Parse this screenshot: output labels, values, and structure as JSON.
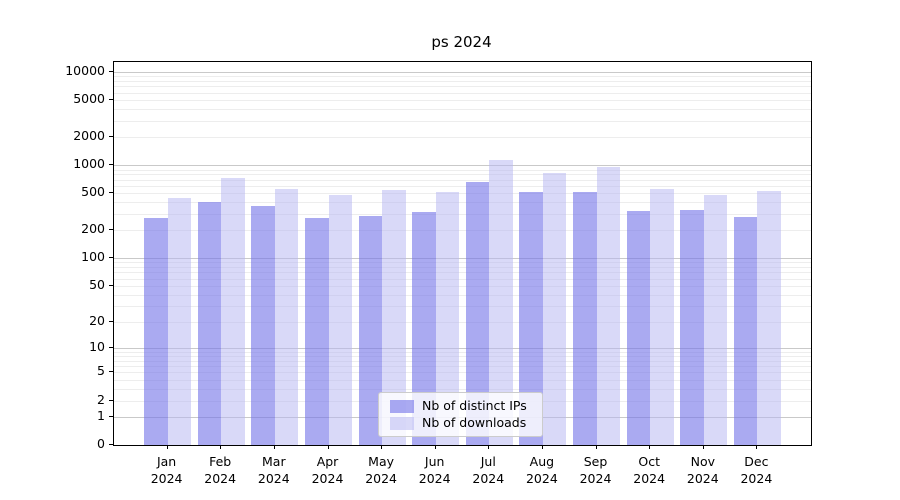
{
  "title": "ps 2024",
  "legend": {
    "items": [
      "Nb of distinct IPs",
      "Nb of downloads"
    ]
  },
  "colors": {
    "distinct_ips_fill": "rgba(118,118,232,0.62)",
    "downloads_fill": "rgba(183,183,242,0.52)",
    "distinct_ips_hex": "#a6a6f1",
    "downloads_hex": "#dadaf8",
    "grid_minor": "#ededed",
    "grid_major": "#c9c9c9",
    "axis": "#000000"
  },
  "chart_data": {
    "type": "bar",
    "title": "ps 2024",
    "categories": [
      "Jan 2024",
      "Feb 2024",
      "Mar 2024",
      "Apr 2024",
      "May 2024",
      "Jun 2024",
      "Jul 2024",
      "Aug 2024",
      "Sep 2024",
      "Oct 2024",
      "Nov 2024",
      "Dec 2024"
    ],
    "series": [
      {
        "name": "Nb of distinct IPs",
        "color": "#a6a6f1",
        "values": [
          270,
          400,
          365,
          270,
          285,
          315,
          655,
          510,
          520,
          320,
          330,
          275
        ]
      },
      {
        "name": "Nb of downloads",
        "color": "#dadaf8",
        "values": [
          445,
          735,
          560,
          475,
          545,
          510,
          1150,
          825,
          950,
          550,
          483,
          527
        ]
      }
    ],
    "yscale": "log1p",
    "y_ticks": [
      0,
      1,
      2,
      5,
      10,
      20,
      50,
      100,
      200,
      500,
      1000,
      2000,
      5000,
      10000
    ],
    "ylim": [
      0,
      12600
    ],
    "grid": true,
    "legend_position": "lower center"
  }
}
